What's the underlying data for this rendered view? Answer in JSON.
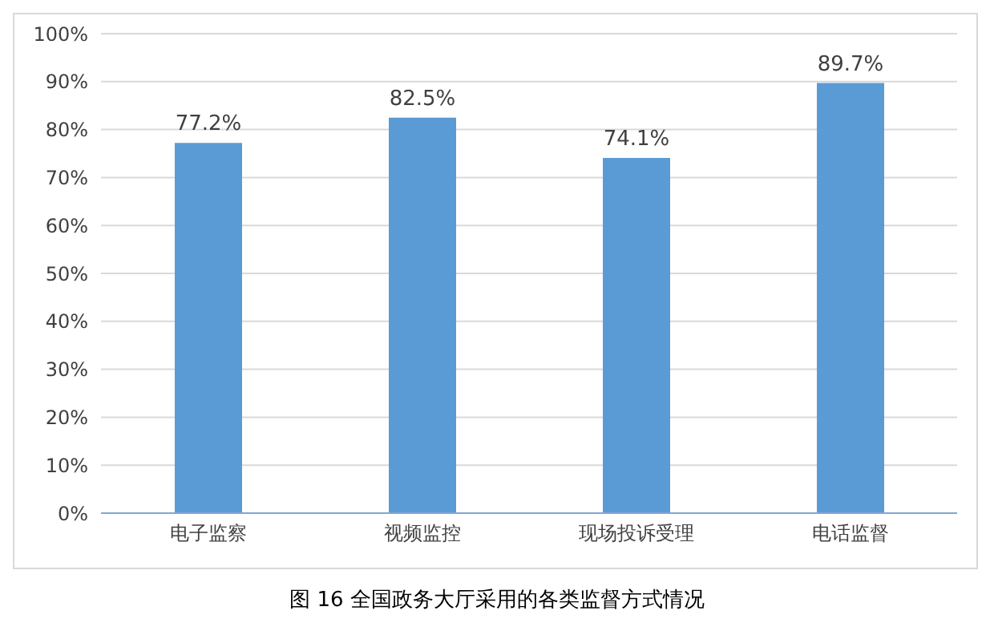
{
  "chart_data": {
    "type": "bar",
    "title": "图 16 全国政务大厅采用的各类监督方式情况",
    "categories": [
      "电子监察",
      "视频监控",
      "现场投诉受理",
      "电话监督"
    ],
    "series": [
      {
        "color": "#5b9bd5",
        "values": [
          77.2,
          82.5,
          74.1,
          89.7
        ],
        "value_labels": [
          "77.2%",
          "82.5%",
          "74.1%",
          "89.7%"
        ]
      }
    ],
    "ylim": [
      0,
      100
    ],
    "yticks": [
      {
        "value": 0,
        "label": "0%"
      },
      {
        "value": 10,
        "label": "10%"
      },
      {
        "value": 20,
        "label": "20%"
      },
      {
        "value": 30,
        "label": "30%"
      },
      {
        "value": 40,
        "label": "40%"
      },
      {
        "value": 50,
        "label": "50%"
      },
      {
        "value": 60,
        "label": "60%"
      },
      {
        "value": 70,
        "label": "70%"
      },
      {
        "value": 80,
        "label": "80%"
      },
      {
        "value": 90,
        "label": "90%"
      },
      {
        "value": 100,
        "label": "100%"
      }
    ],
    "grid": "y",
    "legend": false
  }
}
